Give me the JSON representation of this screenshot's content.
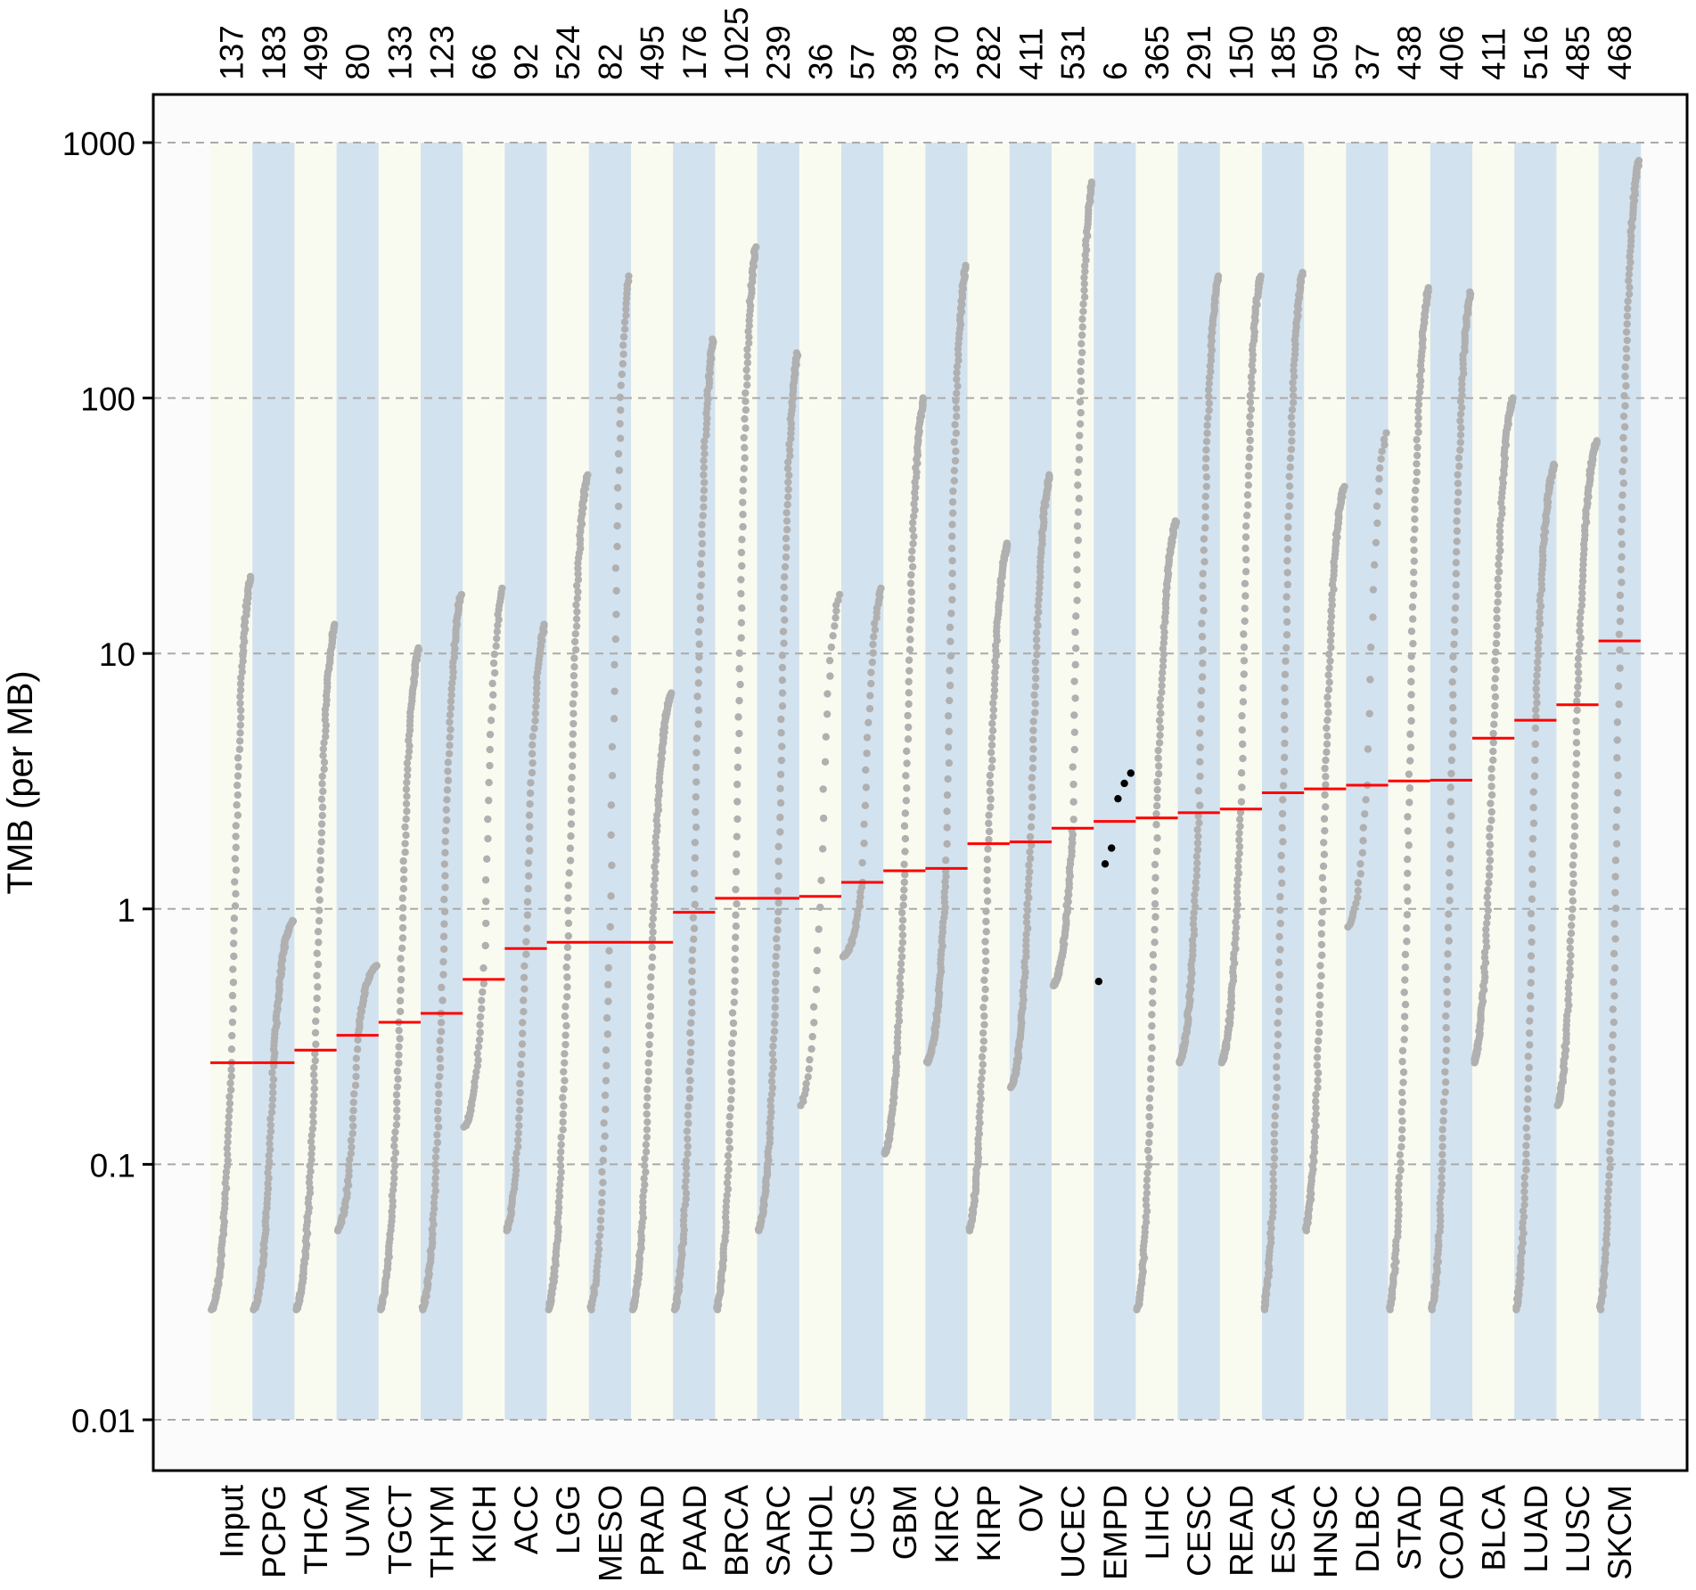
{
  "chart_data": {
    "type": "scatter",
    "ylabel": "TMB (per MB)",
    "yscale": "log",
    "ylim": [
      0.01,
      1000
    ],
    "yticks": [
      {
        "value": 0.01,
        "label": "0.01"
      },
      {
        "value": 0.1,
        "label": "0.1"
      },
      {
        "value": 1,
        "label": "1"
      },
      {
        "value": 10,
        "label": "10"
      },
      {
        "value": 100,
        "label": "100"
      },
      {
        "value": 1000,
        "label": "1000"
      }
    ],
    "grid": "horizontal dashed",
    "colors": {
      "stripe_light": "#fafbf0",
      "stripe_blue": "#d3e2ef",
      "points": "#b0b0b0",
      "input_points": "#000000",
      "median": "#ff0000",
      "plot_background": "#fbfbfb"
    },
    "categories": [
      {
        "name": "Input",
        "n": "137",
        "median": 0.25,
        "min": 0.027,
        "max": 20
      },
      {
        "name": "PCPG",
        "n": "183",
        "median": 0.25,
        "min": 0.027,
        "max": 0.9
      },
      {
        "name": "THCA",
        "n": "499",
        "median": 0.28,
        "min": 0.027,
        "max": 13
      },
      {
        "name": "UVM",
        "n": "80",
        "median": 0.32,
        "min": 0.055,
        "max": 0.6
      },
      {
        "name": "TGCT",
        "n": "133",
        "median": 0.36,
        "min": 0.027,
        "max": 10.5
      },
      {
        "name": "THYM",
        "n": "123",
        "median": 0.39,
        "min": 0.027,
        "max": 17
      },
      {
        "name": "KICH",
        "n": "66",
        "median": 0.53,
        "min": 0.14,
        "max": 18
      },
      {
        "name": "ACC",
        "n": "92",
        "median": 0.7,
        "min": 0.055,
        "max": 13
      },
      {
        "name": "LGG",
        "n": "524",
        "median": 0.74,
        "min": 0.027,
        "max": 50
      },
      {
        "name": "MESO",
        "n": "82",
        "median": 0.74,
        "min": 0.027,
        "max": 300
      },
      {
        "name": "PRAD",
        "n": "495",
        "median": 0.74,
        "min": 0.027,
        "max": 7
      },
      {
        "name": "PAAD",
        "n": "176",
        "median": 0.97,
        "min": 0.027,
        "max": 170
      },
      {
        "name": "BRCA",
        "n": "1025",
        "median": 1.1,
        "min": 0.027,
        "max": 390
      },
      {
        "name": "SARC",
        "n": "239",
        "median": 1.1,
        "min": 0.055,
        "max": 150
      },
      {
        "name": "CHOL",
        "n": "36",
        "median": 1.12,
        "min": 0.17,
        "max": 17
      },
      {
        "name": "UCS",
        "n": "57",
        "median": 1.27,
        "min": 0.65,
        "max": 18
      },
      {
        "name": "GBM",
        "n": "398",
        "median": 1.41,
        "min": 0.11,
        "max": 100
      },
      {
        "name": "KIRC",
        "n": "370",
        "median": 1.44,
        "min": 0.25,
        "max": 330
      },
      {
        "name": "KIRP",
        "n": "282",
        "median": 1.8,
        "min": 0.055,
        "max": 27
      },
      {
        "name": "OV",
        "n": "411",
        "median": 1.83,
        "min": 0.2,
        "max": 50
      },
      {
        "name": "UCEC",
        "n": "531",
        "median": 2.07,
        "min": 0.5,
        "max": 700
      },
      {
        "name": "EMPD",
        "n": "6",
        "median": 2.2,
        "min": 0.52,
        "max": 3.4,
        "points": [
          0.52,
          1.5,
          1.73,
          2.7,
          3.1,
          3.4
        ]
      },
      {
        "name": "LIHC",
        "n": "365",
        "median": 2.27,
        "min": 0.027,
        "max": 33
      },
      {
        "name": "CESC",
        "n": "291",
        "median": 2.38,
        "min": 0.25,
        "max": 300
      },
      {
        "name": "READ",
        "n": "150",
        "median": 2.46,
        "min": 0.25,
        "max": 300
      },
      {
        "name": "ESCA",
        "n": "185",
        "median": 2.85,
        "min": 0.027,
        "max": 310
      },
      {
        "name": "HNSC",
        "n": "509",
        "median": 2.95,
        "min": 0.055,
        "max": 45
      },
      {
        "name": "DLBC",
        "n": "37",
        "median": 3.05,
        "min": 0.85,
        "max": 73
      },
      {
        "name": "STAD",
        "n": "438",
        "median": 3.17,
        "min": 0.027,
        "max": 270
      },
      {
        "name": "COAD",
        "n": "406",
        "median": 3.19,
        "min": 0.027,
        "max": 260
      },
      {
        "name": "BLCA",
        "n": "411",
        "median": 4.66,
        "min": 0.25,
        "max": 100
      },
      {
        "name": "LUAD",
        "n": "516",
        "median": 5.48,
        "min": 0.027,
        "max": 55
      },
      {
        "name": "LUSC",
        "n": "485",
        "median": 6.3,
        "min": 0.17,
        "max": 68
      },
      {
        "name": "SKCM",
        "n": "468",
        "median": 11.2,
        "min": 0.027,
        "max": 850
      }
    ]
  }
}
